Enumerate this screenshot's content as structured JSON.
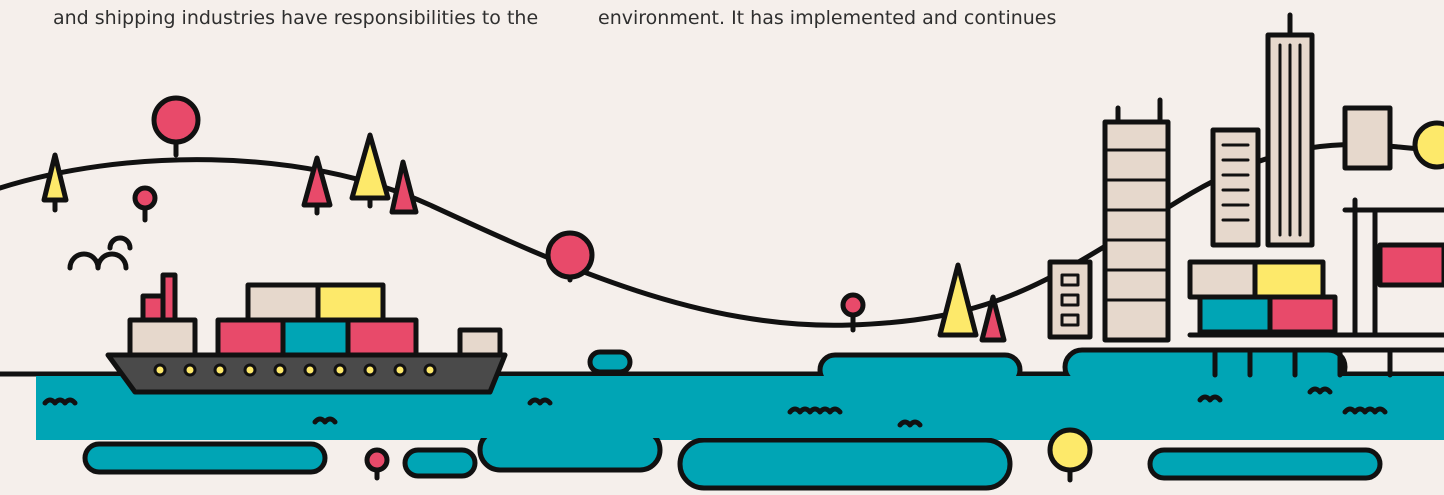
{
  "text": {
    "column_1": "and shipping industries have responsibilities to the",
    "column_2": "environment. It has implemented and continues"
  }
}
